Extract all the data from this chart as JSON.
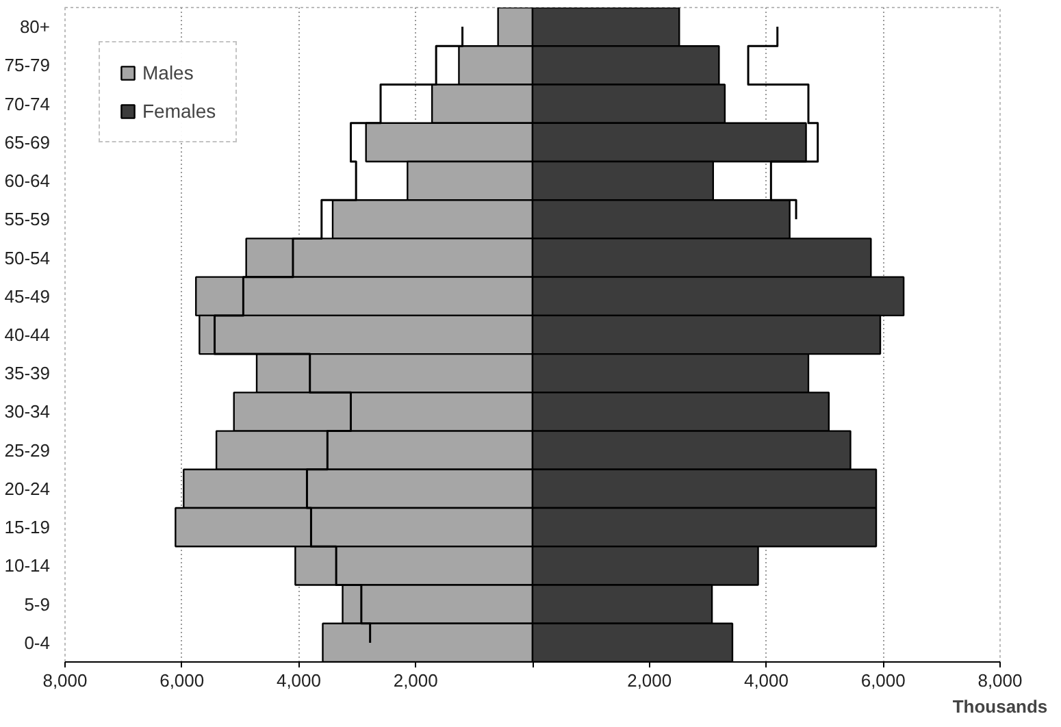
{
  "chart_data": {
    "type": "bar",
    "orientation": "horizontal",
    "xlabel": "Thousands",
    "categories": [
      "80+",
      "75-79",
      "70-74",
      "65-69",
      "60-64",
      "55-59",
      "50-54",
      "45-49",
      "40-44",
      "35-39",
      "30-34",
      "25-29",
      "20-24",
      "15-19",
      "10-14",
      "5-9",
      "0-4"
    ],
    "series": [
      {
        "name": "Males",
        "color": "#a6a6a6",
        "values": [
          -590,
          -1260,
          -1720,
          -2850,
          -2140,
          -3420,
          -4900,
          -5760,
          -5700,
          -4720,
          -5110,
          -5410,
          -5970,
          -6110,
          -4060,
          -3250,
          -3590
        ]
      },
      {
        "name": "Females",
        "color": "#3c3c3c",
        "values": [
          2510,
          3190,
          3290,
          4680,
          3090,
          4400,
          5790,
          6350,
          5950,
          4720,
          5070,
          5440,
          5880,
          5880,
          3860,
          3070,
          3420
        ]
      },
      {
        "type": "step",
        "color": "#000000",
        "values": [
          -1200,
          -1650,
          -2600,
          -3110,
          -3020,
          -3610,
          -4100,
          -4950,
          -5440,
          -3810,
          -3110,
          -3510,
          -3860,
          -3790,
          -3360,
          -2930,
          -2780
        ]
      },
      {
        "type": "step",
        "color": "#000000",
        "values": [
          4190,
          3690,
          4720,
          4880,
          4080,
          4510,
          null,
          null,
          null,
          null,
          null,
          null,
          null,
          null,
          null,
          null,
          null
        ]
      }
    ],
    "xlim": [
      -8000,
      8000
    ],
    "xticks": [
      {
        "value": -8000,
        "label": "8,000"
      },
      {
        "value": -6000,
        "label": "6,000"
      },
      {
        "value": -4000,
        "label": "4,000"
      },
      {
        "value": -2000,
        "label": "2,000"
      },
      {
        "value": 0,
        "label": null
      },
      {
        "value": 2000,
        "label": "2,000"
      },
      {
        "value": 4000,
        "label": "4,000"
      },
      {
        "value": 6000,
        "label": "6,000"
      },
      {
        "value": 8000,
        "label": "8,000"
      }
    ],
    "grid": "x",
    "legend": "top left",
    "stacked": true
  }
}
